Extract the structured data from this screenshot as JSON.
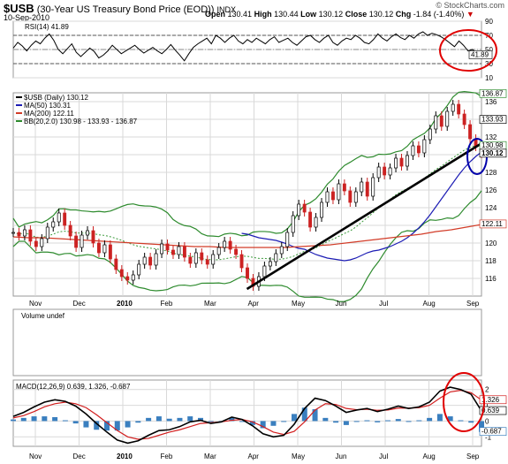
{
  "header": {
    "symbol": "$USB",
    "name": "(30-Year US Treasury Bond Price (EOD))",
    "exchange": "INDX",
    "brand": "© StockCharts.com",
    "date": "10-Sep-2010",
    "open_label": "Open",
    "open": "130.41",
    "high_label": "High",
    "high": "130.44",
    "low_label": "Low",
    "low": "130.12",
    "close_label": "Close",
    "close": "130.12",
    "chg_label": "Chg",
    "chg": "-1.84 (-1.40%)"
  },
  "colors": {
    "ma50": "#1c1cb4",
    "ma200": "#d23c28",
    "bb": "#2e8b2e",
    "bb_mid": "#3a9a3a",
    "up_candle": "#000000",
    "down_candle": "#cc2222",
    "trendline": "#000000",
    "circle_red": "#e00000",
    "circle_blue": "#0000aa",
    "macd_line": "#000000",
    "signal_line": "#d21e1e",
    "histogram": "#3a7fbf",
    "grid": "#d9d9d9"
  },
  "chart_data": [
    {
      "type": "line",
      "title": "RSI(14) 41.89",
      "ylim": [
        10,
        90
      ],
      "yticks": [
        10,
        30,
        50,
        70,
        90
      ],
      "guides": [
        30,
        70
      ],
      "series": [
        {
          "name": "RSI(14)",
          "x": [
            0,
            5,
            10,
            15,
            20,
            25,
            30,
            35,
            40,
            45,
            50,
            55,
            60,
            65,
            70,
            75,
            80,
            85,
            90,
            95,
            100,
            105,
            110,
            115,
            120,
            125,
            130,
            135,
            140,
            145,
            150,
            155,
            160,
            165,
            170,
            175,
            180,
            185,
            190,
            195,
            200,
            205,
            210,
            215,
            220,
            225,
            230,
            235,
            240,
            245,
            250,
            255,
            260,
            265,
            270,
            275,
            280,
            285,
            290,
            295,
            300,
            305,
            310,
            315,
            320,
            325,
            330,
            335,
            340,
            345,
            350,
            355,
            360,
            365,
            370,
            375,
            380,
            385,
            390,
            395,
            400,
            405,
            410,
            415,
            420,
            425,
            430,
            435,
            440,
            445,
            450,
            455,
            460,
            465,
            470,
            475,
            480,
            485,
            490,
            495,
            500,
            505,
            510,
            515,
            520
          ],
          "values": [
            52,
            60,
            55,
            48,
            56,
            62,
            58,
            66,
            72,
            63,
            50,
            44,
            51,
            58,
            46,
            40,
            46,
            52,
            47,
            38,
            42,
            48,
            56,
            50,
            44,
            48,
            52,
            56,
            50,
            45,
            49,
            53,
            48,
            44,
            50,
            57,
            49,
            42,
            34,
            44,
            53,
            58,
            62,
            66,
            58,
            70,
            66,
            60,
            66,
            70,
            62,
            58,
            64,
            60,
            66,
            62,
            58,
            64,
            68,
            60,
            63,
            66,
            60,
            56,
            62,
            68,
            70,
            64,
            60,
            66,
            70,
            60,
            56,
            62,
            66,
            64,
            70,
            66,
            60,
            58,
            64,
            72,
            66,
            62,
            68,
            72,
            67,
            64,
            70,
            66,
            72,
            75,
            70,
            73,
            71,
            68,
            64,
            59,
            54,
            62,
            56,
            48,
            50,
            44,
            42
          ]
        }
      ],
      "value_label": "41.89"
    },
    {
      "type": "line",
      "title": "$USB (Daily) 130.12",
      "ylim": [
        114,
        137
      ],
      "yticks": [
        116,
        118,
        120,
        122,
        124,
        126,
        128,
        130,
        132,
        134,
        136
      ],
      "x_ticks": [
        "Nov",
        "Dec",
        "2010",
        "Feb",
        "Mar",
        "Apr",
        "May",
        "Jun",
        "Jul",
        "Aug",
        "Sep"
      ],
      "legend": [
        "$USB (Daily) 130.12",
        "MA(50) 130.31",
        "MA(200) 122.11",
        "BB(20,2.0) 130.98 - 133.93 - 136.87"
      ],
      "price_labels": [
        "136.87",
        "133.93",
        "130.98",
        "130.12",
        "122.11"
      ],
      "series": [
        {
          "name": "$USB (Daily) 130.12",
          "values": [
            121.2,
            120.8,
            121.5,
            120.2,
            119.6,
            120.5,
            121.8,
            122.4,
            123.4,
            122.0,
            120.8,
            119.5,
            120.9,
            121.4,
            120.0,
            118.9,
            119.8,
            118.2,
            117.0,
            116.2,
            115.8,
            116.4,
            117.6,
            118.4,
            117.5,
            118.8,
            119.9,
            119.2,
            118.7,
            119.6,
            118.4,
            117.7,
            118.9,
            118.1,
            117.6,
            118.7,
            119.5,
            120.2,
            119.3,
            118.7,
            117.2,
            116.0,
            115.1,
            116.2,
            117.4,
            117.9,
            118.8,
            119.6,
            121.2,
            123.1,
            124.4,
            123.5,
            121.8,
            122.9,
            124.6,
            125.8,
            124.9,
            126.7,
            125.9,
            124.6,
            125.8,
            126.9,
            125.3,
            127.4,
            128.6,
            127.7,
            128.5,
            129.6,
            128.7,
            129.9,
            131.0,
            130.2,
            131.7,
            132.9,
            134.4,
            133.2,
            134.9,
            135.7,
            134.6,
            133.4,
            131.8,
            130.9,
            130.1
          ]
        },
        {
          "name": "MA(50) 130.31",
          "values": [
            121.1,
            121.0,
            120.8,
            120.6,
            120.5,
            120.4,
            120.3,
            120.1,
            119.9,
            119.6,
            119.4,
            119.3,
            119.0,
            118.7,
            118.5,
            118.3,
            118.2,
            118.1,
            118.0,
            118.1,
            118.3,
            118.6,
            118.9,
            119.1,
            119.2,
            119.4,
            119.6,
            119.9,
            120.2,
            120.6,
            121.1,
            121.7,
            122.4,
            123.2,
            124.1,
            125.0,
            125.9,
            126.8,
            127.7,
            128.5,
            129.2,
            129.8,
            130.3
          ]
        },
        {
          "name": "MA(200) 122.11",
          "values": [
            120.7,
            120.6,
            120.6,
            120.5,
            120.4,
            120.3,
            120.2,
            120.1,
            120.0,
            119.9,
            119.8,
            119.7,
            119.6,
            119.6,
            119.5,
            119.5,
            119.5,
            119.5,
            119.5,
            119.6,
            119.7,
            119.8,
            120.0,
            120.2,
            120.4,
            120.6,
            120.8,
            121.0,
            121.3,
            121.5,
            121.8,
            122.1
          ]
        },
        {
          "name": "BB(20,2.0) 130.98 - 133.93 - 136.87",
          "values": [
            134.0,
            133.9
          ]
        }
      ],
      "trendline": {
        "start": [
          "Apr",
          114.8
        ],
        "end": [
          "Sep",
          131.4
        ]
      }
    },
    {
      "type": "bar",
      "title": "Volume undef",
      "values": []
    },
    {
      "type": "line",
      "title": "MACD(12,26,9) 0.639, 1.326, -0.687",
      "ylim": [
        -1.6,
        2.6
      ],
      "yticks": [
        -1,
        0,
        1,
        2
      ],
      "x_ticks": [
        "Nov",
        "Dec",
        "2010",
        "Feb",
        "Mar",
        "Apr",
        "May",
        "Jun",
        "Jul",
        "Aug",
        "Sep"
      ],
      "value_labels": [
        "1.326",
        "0.639",
        "-0.687"
      ],
      "series": [
        {
          "name": "MACD",
          "values": [
            0.3,
            0.55,
            0.9,
            1.2,
            1.35,
            1.25,
            0.95,
            0.45,
            -0.15,
            -0.7,
            -1.2,
            -1.4,
            -1.25,
            -0.9,
            -0.6,
            -0.55,
            -0.35,
            -0.05,
            0.05,
            -0.15,
            -0.05,
            0.25,
            0.1,
            -0.3,
            -0.8,
            -1.0,
            -0.9,
            -0.2,
            0.8,
            1.45,
            1.3,
            0.95,
            0.55,
            0.7,
            0.8,
            0.6,
            0.75,
            0.95,
            0.8,
            0.9,
            1.2,
            1.9,
            2.15,
            2.0,
            1.7,
            0.64
          ]
        },
        {
          "name": "Signal",
          "values": [
            0.2,
            0.35,
            0.6,
            0.9,
            1.1,
            1.2,
            1.1,
            0.85,
            0.4,
            -0.1,
            -0.6,
            -1.0,
            -1.15,
            -1.1,
            -0.9,
            -0.7,
            -0.55,
            -0.35,
            -0.15,
            -0.1,
            -0.05,
            0.05,
            0.1,
            -0.05,
            -0.35,
            -0.7,
            -0.85,
            -0.65,
            -0.05,
            0.7,
            1.1,
            1.05,
            0.8,
            0.72,
            0.75,
            0.68,
            0.7,
            0.82,
            0.82,
            0.85,
            1.0,
            1.45,
            1.85,
            1.95,
            1.8,
            1.33
          ]
        },
        {
          "name": "Histogram",
          "values": [
            0.1,
            0.2,
            0.3,
            0.3,
            0.25,
            0.05,
            -0.15,
            -0.4,
            -0.55,
            -0.6,
            -0.6,
            -0.4,
            -0.1,
            0.2,
            0.3,
            0.15,
            0.2,
            0.3,
            0.2,
            -0.05,
            0.0,
            0.2,
            0.0,
            -0.25,
            -0.45,
            -0.3,
            -0.05,
            0.45,
            0.85,
            0.75,
            0.2,
            -0.1,
            -0.25,
            -0.02,
            0.05,
            -0.08,
            0.05,
            0.13,
            -0.02,
            0.05,
            0.2,
            0.45,
            0.3,
            0.05,
            -0.1,
            -0.69
          ]
        }
      ]
    }
  ]
}
